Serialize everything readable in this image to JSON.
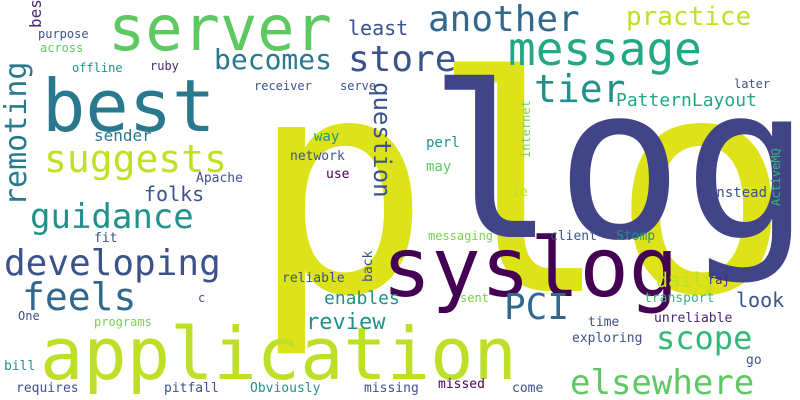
{
  "palette": {
    "yellow": "#dde318",
    "navy": "#414487",
    "purple": "#440154",
    "teal": "#2a788e",
    "blue": "#3b528b",
    "slate": "#31688e",
    "cyan": "#21918c",
    "green": "#22a884",
    "lime": "#7ad151",
    "lightlime": "#bddf26",
    "mint": "#35b779"
  },
  "words": [
    {
      "id": "plog",
      "text": "plog",
      "color": "#dde318"
    },
    {
      "id": "log",
      "text": "log",
      "color": "#414487"
    },
    {
      "id": "syslog",
      "text": "syslog",
      "color": "#440154"
    },
    {
      "id": "application",
      "text": "application",
      "color": "#bddf26"
    },
    {
      "id": "best",
      "text": "best",
      "color": "#2a788e"
    },
    {
      "id": "server",
      "text": "server",
      "color": "#5ec962"
    },
    {
      "id": "message",
      "text": "message",
      "color": "#22a884"
    },
    {
      "id": "another",
      "text": "another",
      "color": "#31688e"
    },
    {
      "id": "practice",
      "text": "practice",
      "color": "#c2df23"
    },
    {
      "id": "store",
      "text": "store",
      "color": "#3b528b"
    },
    {
      "id": "becomes",
      "text": "becomes",
      "color": "#2a788e"
    },
    {
      "id": "tier",
      "text": "tier",
      "color": "#21918c"
    },
    {
      "id": "remoting",
      "text": "remoting",
      "color": "#2a788e"
    },
    {
      "id": "best2",
      "text": "best",
      "color": "#482878"
    },
    {
      "id": "suggests",
      "text": "suggests",
      "color": "#c2df23"
    },
    {
      "id": "guidance",
      "text": "guidance",
      "color": "#21918c"
    },
    {
      "id": "developing",
      "text": "developing",
      "color": "#3b528b"
    },
    {
      "id": "feels",
      "text": "feels",
      "color": "#31688e"
    },
    {
      "id": "pci",
      "text": "PCI",
      "color": "#31688e"
    },
    {
      "id": "scope",
      "text": "scope",
      "color": "#35b779"
    },
    {
      "id": "elsewhere",
      "text": "elsewhere",
      "color": "#5ec962"
    },
    {
      "id": "question",
      "text": "question",
      "color": "#3b528b"
    },
    {
      "id": "patternlayout",
      "text": "PatternLayout",
      "color": "#22a884"
    },
    {
      "id": "least",
      "text": "least",
      "color": "#3b528b"
    },
    {
      "id": "enables",
      "text": "enables",
      "color": "#21918c"
    },
    {
      "id": "review",
      "text": "review",
      "color": "#21918c"
    },
    {
      "id": "daily",
      "text": "daily",
      "color": "#bddf26"
    },
    {
      "id": "look",
      "text": "look",
      "color": "#3b528b"
    },
    {
      "id": "folks",
      "text": "folks",
      "color": "#3b528b"
    },
    {
      "id": "sender",
      "text": "sender",
      "color": "#2a788e"
    },
    {
      "id": "purpose",
      "text": "purpose",
      "color": "#3b528b"
    },
    {
      "id": "across",
      "text": "across",
      "color": "#5ec962"
    },
    {
      "id": "offline",
      "text": "offline",
      "color": "#21918c"
    },
    {
      "id": "ruby",
      "text": "ruby",
      "color": "#482878"
    },
    {
      "id": "receiver",
      "text": "receiver",
      "color": "#3b528b"
    },
    {
      "id": "serve",
      "text": "serve",
      "color": "#3b528b"
    },
    {
      "id": "internet",
      "text": "internet",
      "color": "#7ad151"
    },
    {
      "id": "later",
      "text": "later",
      "color": "#3b528b"
    },
    {
      "id": "activemq",
      "text": "ActiveMQ",
      "color": "#35b779"
    },
    {
      "id": "way",
      "text": "way",
      "color": "#21918c"
    },
    {
      "id": "network",
      "text": "network",
      "color": "#3b528b"
    },
    {
      "id": "use",
      "text": "use",
      "color": "#440154"
    },
    {
      "id": "apache",
      "text": "Apache",
      "color": "#3b528b"
    },
    {
      "id": "perl",
      "text": "perl",
      "color": "#21918c"
    },
    {
      "id": "may",
      "text": "may",
      "color": "#5ec962"
    },
    {
      "id": "ie",
      "text": "ie",
      "color": "#bddf26"
    },
    {
      "id": "instead",
      "text": "instead",
      "color": "#3b528b"
    },
    {
      "id": "fit",
      "text": "fit",
      "color": "#3b528b"
    },
    {
      "id": "messaging",
      "text": "messaging",
      "color": "#7ad151"
    },
    {
      "id": "client",
      "text": "client",
      "color": "#3b528b"
    },
    {
      "id": "stomp",
      "text": "Stomp",
      "color": "#21918c"
    },
    {
      "id": "back",
      "text": "back",
      "color": "#3b528b"
    },
    {
      "id": "reliable",
      "text": "reliable",
      "color": "#3b528b"
    },
    {
      "id": "raj",
      "text": "raj",
      "color": "#482878"
    },
    {
      "id": "c",
      "text": "c",
      "color": "#3b528b"
    },
    {
      "id": "sent",
      "text": "sent",
      "color": "#7ad151"
    },
    {
      "id": "transport",
      "text": "transport",
      "color": "#35b779"
    },
    {
      "id": "one",
      "text": "One",
      "color": "#3b528b"
    },
    {
      "id": "programs",
      "text": "programs",
      "color": "#7ad151"
    },
    {
      "id": "time",
      "text": "time",
      "color": "#3b528b"
    },
    {
      "id": "unreliable",
      "text": "unreliable",
      "color": "#482878"
    },
    {
      "id": "exploring",
      "text": "exploring",
      "color": "#3b528b"
    },
    {
      "id": "go",
      "text": "go",
      "color": "#3b528b"
    },
    {
      "id": "bill",
      "text": "bill",
      "color": "#21918c"
    },
    {
      "id": "requires",
      "text": "requires",
      "color": "#3b528b"
    },
    {
      "id": "pitfall",
      "text": "pitfall",
      "color": "#3b528b"
    },
    {
      "id": "obviously",
      "text": "Obviously",
      "color": "#21918c"
    },
    {
      "id": "missing",
      "text": "missing",
      "color": "#3b528b"
    },
    {
      "id": "missed",
      "text": "missed",
      "color": "#440154"
    },
    {
      "id": "come",
      "text": "come",
      "color": "#3b528b"
    }
  ]
}
